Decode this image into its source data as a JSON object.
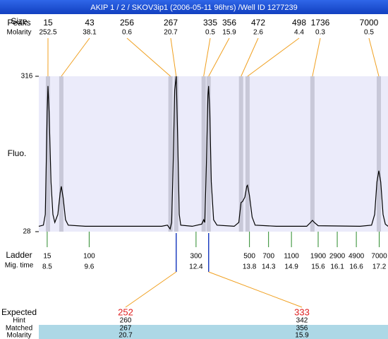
{
  "title": "AKIP 1 / 2 / SKOV3ip1 (2006-05-11 96hrs) /Well ID 1277239",
  "header": {
    "peaks_label": "Peaks",
    "size_label": "Size",
    "molarity_label": "Molarity"
  },
  "peaks": {
    "sizes": [
      15,
      43,
      256,
      267,
      335,
      356,
      472,
      498,
      1736,
      7000
    ],
    "molarity": [
      252.5,
      38.1,
      0.6,
      20.7,
      0.5,
      15.9,
      2.6,
      4.4,
      0.3,
      0.5
    ],
    "times": [
      8.52,
      8.87,
      11.73,
      11.88,
      12.6,
      12.73,
      13.58,
      13.75,
      15.45,
      17.19
    ]
  },
  "plot": {
    "ylabel": "Fluo.",
    "ylim": [
      28,
      316
    ],
    "yticks": [
      28,
      316
    ],
    "xlim": [
      8.28,
      17.43
    ],
    "trace": {
      "x": [
        8.28,
        8.4,
        8.45,
        8.5,
        8.52,
        8.55,
        8.6,
        8.65,
        8.7,
        8.78,
        8.84,
        8.87,
        8.92,
        8.98,
        9.05,
        9.5,
        10.5,
        11.5,
        11.65,
        11.72,
        11.76,
        11.8,
        11.84,
        11.88,
        11.92,
        11.96,
        12.0,
        12.3,
        12.55,
        12.6,
        12.63,
        12.67,
        12.71,
        12.73,
        12.76,
        12.8,
        12.86,
        12.95,
        13.4,
        13.52,
        13.58,
        13.62,
        13.68,
        13.73,
        13.75,
        13.8,
        13.87,
        13.95,
        14.5,
        15.3,
        15.4,
        15.45,
        15.5,
        15.6,
        16.7,
        17.0,
        17.08,
        17.14,
        17.19,
        17.24,
        17.3,
        17.36,
        17.43
      ],
      "y": [
        38,
        40,
        60,
        250,
        298,
        250,
        120,
        60,
        45,
        60,
        100,
        112,
        90,
        50,
        40,
        38,
        38,
        38,
        40,
        33,
        45,
        150,
        290,
        316,
        200,
        60,
        40,
        38,
        42,
        50,
        45,
        150,
        280,
        298,
        250,
        120,
        50,
        40,
        38,
        45,
        82,
        84,
        92,
        112,
        114,
        95,
        55,
        40,
        38,
        38,
        45,
        49,
        45,
        39,
        38,
        40,
        60,
        120,
        141,
        120,
        60,
        42,
        38
      ]
    }
  },
  "ladder": {
    "label": "Ladder",
    "time_label": "Mig. time",
    "sizes": [
      15,
      100,
      300,
      500,
      700,
      1100,
      1900,
      2900,
      4900,
      7000
    ],
    "times": [
      8.5,
      9.6,
      12.4,
      13.8,
      14.3,
      14.9,
      15.6,
      16.1,
      16.6,
      17.2
    ]
  },
  "expected": {
    "labels": [
      "Expected",
      "Hint",
      "Matched",
      "Molarity"
    ],
    "columns": [
      {
        "expected": 252,
        "hint": 260,
        "matched": 267,
        "molarity": 20.7
      },
      {
        "expected": 333,
        "hint": 342,
        "matched": 356,
        "molarity": 15.9
      }
    ]
  }
}
